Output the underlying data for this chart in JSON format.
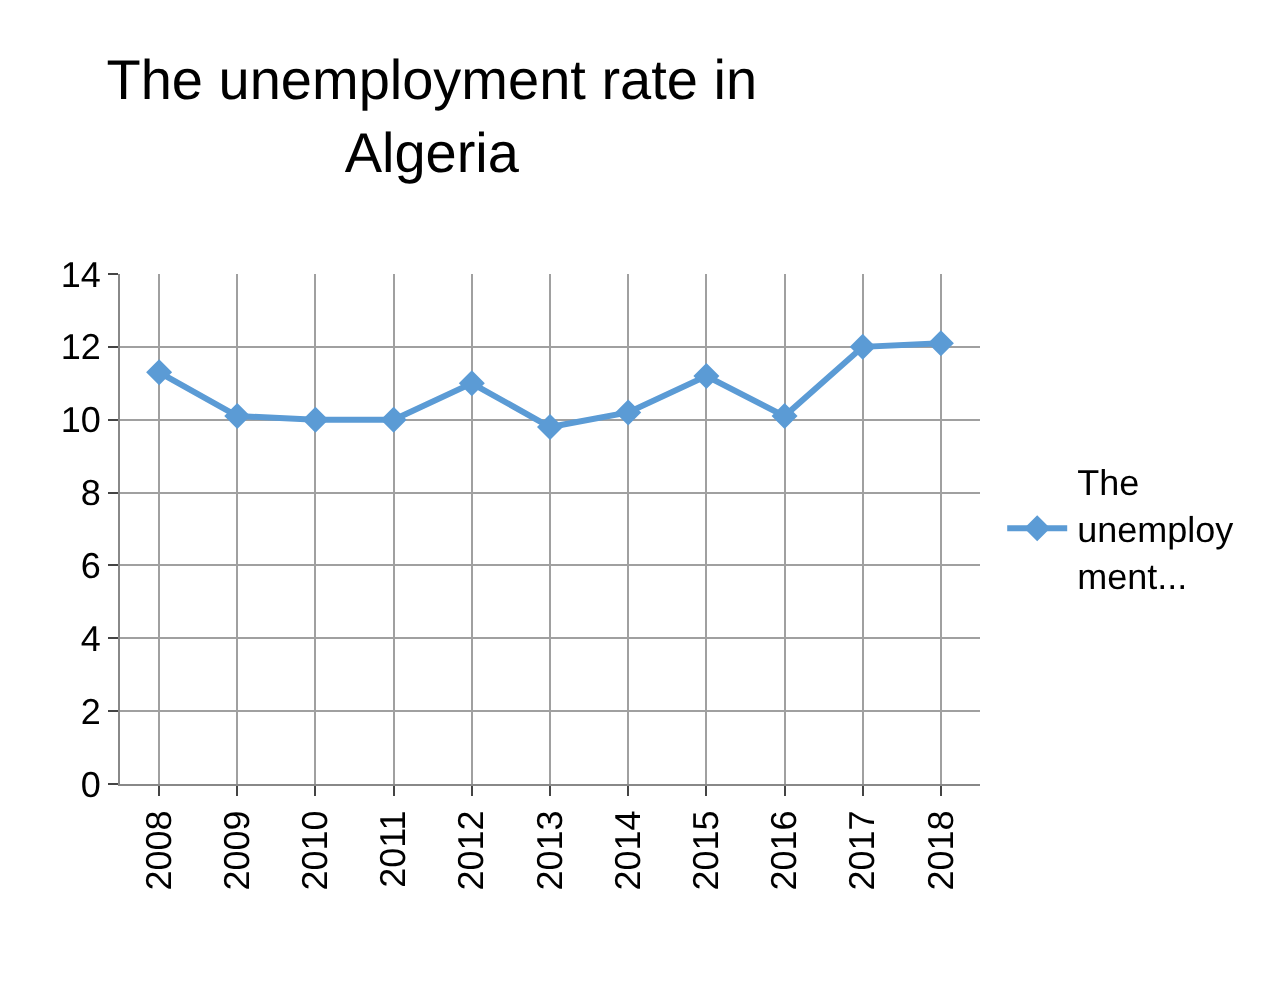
{
  "chart_data": {
    "type": "line",
    "title": "The unemployment rate in Algeria",
    "categories": [
      "2008",
      "2009",
      "2010",
      "2011",
      "2012",
      "2013",
      "2014",
      "2015",
      "2016",
      "2017",
      "2018"
    ],
    "series": [
      {
        "name": "The unemployment...",
        "color": "#5b9bd5",
        "values": [
          11.3,
          10.1,
          10.0,
          10.0,
          11.0,
          9.8,
          10.2,
          11.2,
          10.1,
          12.0,
          12.1
        ]
      }
    ],
    "ylim": [
      0,
      14
    ],
    "yticks": [
      0,
      2,
      4,
      6,
      8,
      10,
      12,
      14
    ],
    "grid": true,
    "legend": "right",
    "marker": "diamond",
    "line_style": "solid"
  }
}
